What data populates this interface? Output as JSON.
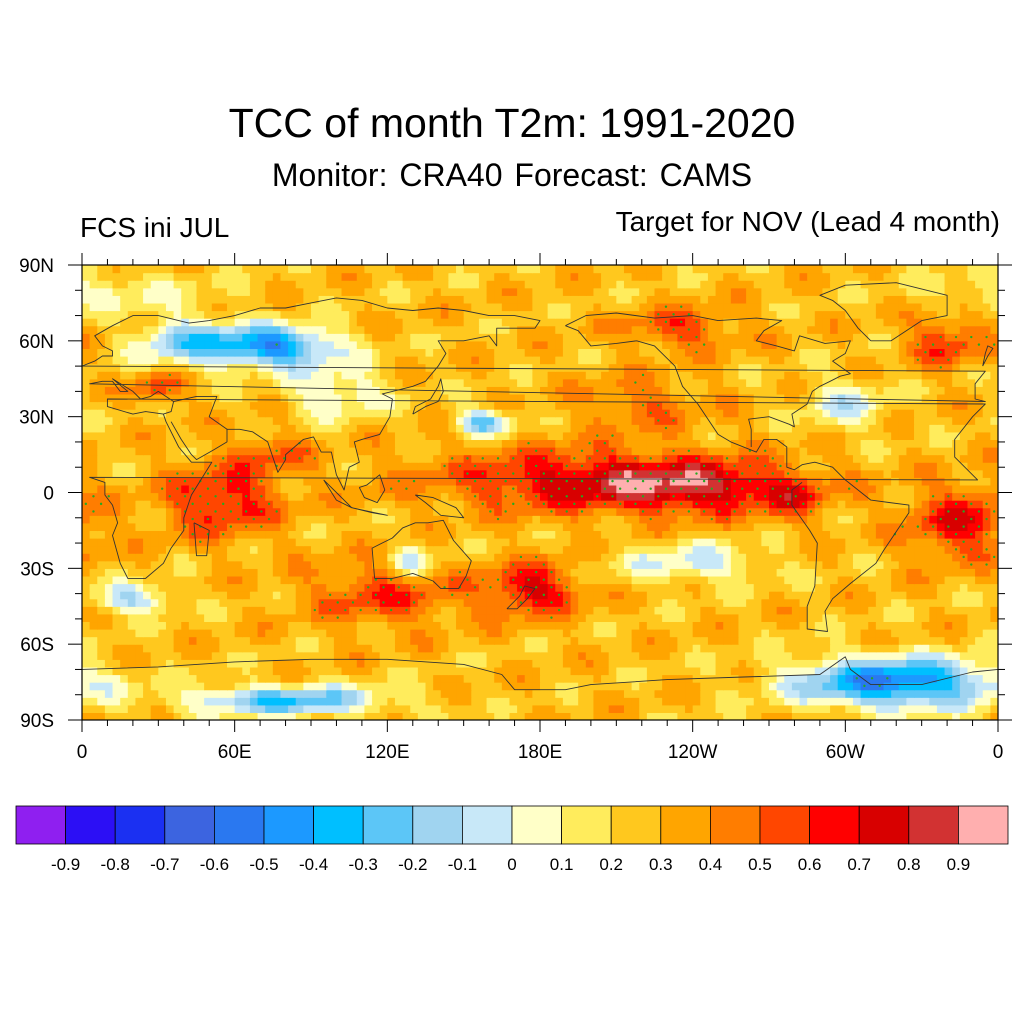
{
  "header": {
    "title": "TCC of month T2m: 1991-2020",
    "subtitle": "Monitor: CRA40   Forecast: CAMS",
    "left_label": "FCS ini JUL",
    "right_label": "Target for NOV (Lead 4 month)"
  },
  "map": {
    "projection": "cylindrical equidistant",
    "lat_range": [
      -90,
      90
    ],
    "lon_range": [
      0,
      360
    ],
    "lat_ticks": [
      "90N",
      "60N",
      "30N",
      "0",
      "30S",
      "60S",
      "90S"
    ],
    "lon_ticks": [
      "0",
      "60E",
      "120E",
      "180E",
      "120W",
      "60W",
      "0"
    ],
    "stipple_color": "#22aa22",
    "features": [
      {
        "name": "Tropical Pacific maximum",
        "lon": [
          170,
          280
        ],
        "lat": [
          -15,
          15
        ],
        "value": 0.75
      },
      {
        "name": "Indian Ocean warm tongue",
        "lon": [
          40,
          75
        ],
        "lat": [
          -15,
          15
        ],
        "value": 0.6
      },
      {
        "name": "Tropical Atlantic",
        "lon": [
          325,
          360
        ],
        "lat": [
          -25,
          5
        ],
        "value": 0.6
      },
      {
        "name": "Southwest Pacific",
        "lon": [
          165,
          195
        ],
        "lat": [
          -50,
          -25
        ],
        "value": 0.55
      },
      {
        "name": "Siberia negative",
        "lon": [
          40,
          110
        ],
        "lat": [
          45,
          70
        ],
        "value": -0.4
      },
      {
        "name": "Southern Ocean negative",
        "lon": [
          290,
          360
        ],
        "lat": [
          -90,
          -55
        ],
        "value": -0.5
      },
      {
        "name": "North Pacific negative",
        "lon": [
          145,
          175
        ],
        "lat": [
          20,
          35
        ],
        "value": -0.3
      }
    ]
  },
  "colorbar": {
    "colors": [
      "#8f1ff0",
      "#2c0ff5",
      "#1b30f2",
      "#3c64e0",
      "#2a78f0",
      "#1c99ff",
      "#00bfff",
      "#5cc6f7",
      "#a0d4f0",
      "#c8e8f8",
      "#ffffc8",
      "#ffec5c",
      "#ffc81e",
      "#ffa500",
      "#ff7d00",
      "#ff4600",
      "#ff0000",
      "#d80000",
      "#d23232",
      "#ffafaf"
    ],
    "labels": [
      "-0.9",
      "-0.8",
      "-0.7",
      "-0.6",
      "-0.5",
      "-0.4",
      "-0.3",
      "-0.2",
      "-0.1",
      "0",
      "0.1",
      "0.2",
      "0.3",
      "0.4",
      "0.5",
      "0.6",
      "0.7",
      "0.8",
      "0.9"
    ]
  }
}
